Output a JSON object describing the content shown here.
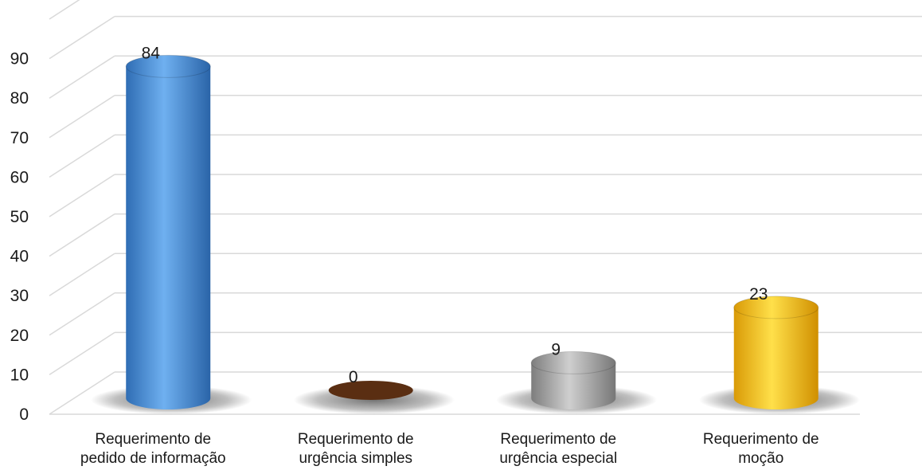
{
  "chart_data": {
    "type": "bar",
    "categories": [
      [
        "Requerimento de",
        "pedido de informação"
      ],
      [
        "Requerimento de",
        "urgência simples"
      ],
      [
        "Requerimento de",
        "urgência especial"
      ],
      [
        "Requerimento de",
        "moção"
      ]
    ],
    "values": [
      84,
      0,
      9,
      23
    ],
    "ylim": [
      0,
      100
    ],
    "yticks": [
      0,
      10,
      20,
      30,
      40,
      50,
      60,
      70,
      80,
      90
    ],
    "grid": true,
    "style": "3d-cylinder",
    "colors": [
      "#4a8fd8",
      "#5a2e12",
      "#9a9a9a",
      "#f2c21a"
    ]
  }
}
